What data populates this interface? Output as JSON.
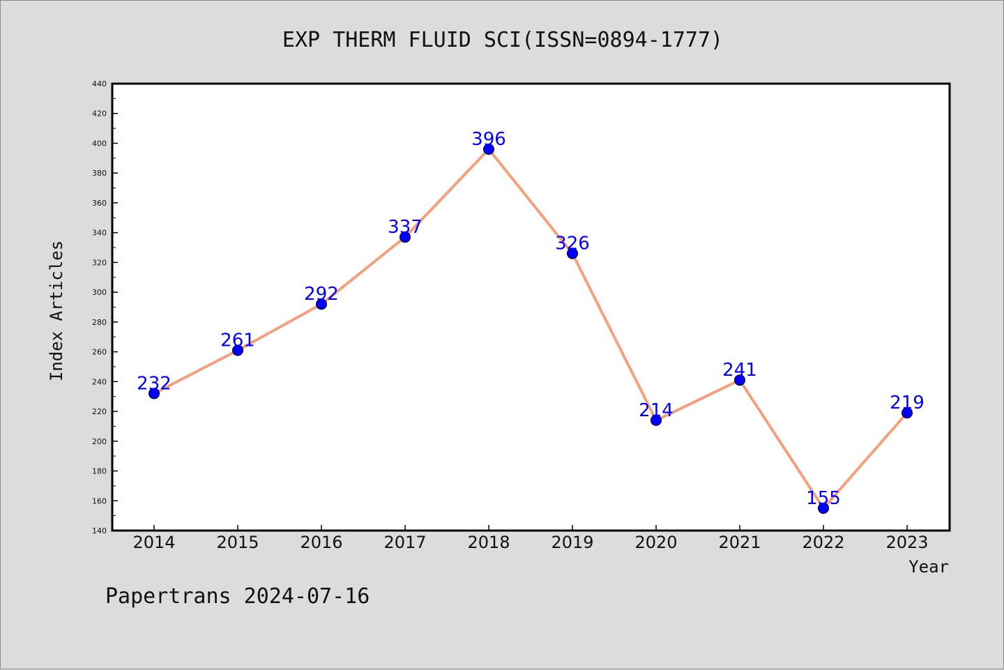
{
  "chart_data": {
    "type": "line",
    "title": "EXP THERM FLUID SCI(ISSN=0894-1777)",
    "xlabel": "Year",
    "ylabel": "Index Articles",
    "categories": [
      "2014",
      "2015",
      "2016",
      "2017",
      "2018",
      "2019",
      "2020",
      "2021",
      "2022",
      "2023"
    ],
    "series": [
      {
        "values": [
          232,
          261,
          292,
          337,
          396,
          326,
          214,
          241,
          155,
          219
        ]
      }
    ],
    "ylim": [
      140,
      440
    ],
    "yticks": [
      140,
      160,
      180,
      200,
      220,
      240,
      260,
      280,
      300,
      320,
      340,
      360,
      380,
      400,
      420,
      440
    ],
    "grid": false,
    "data_labels": true
  },
  "footer": {
    "text": "Papertrans 2024-07-16"
  },
  "colors": {
    "background": "#dcdcdc",
    "plot_area": "#ffffff",
    "line": "#f4a07c",
    "marker": "#0000ff",
    "data_label": "#0000ff"
  }
}
